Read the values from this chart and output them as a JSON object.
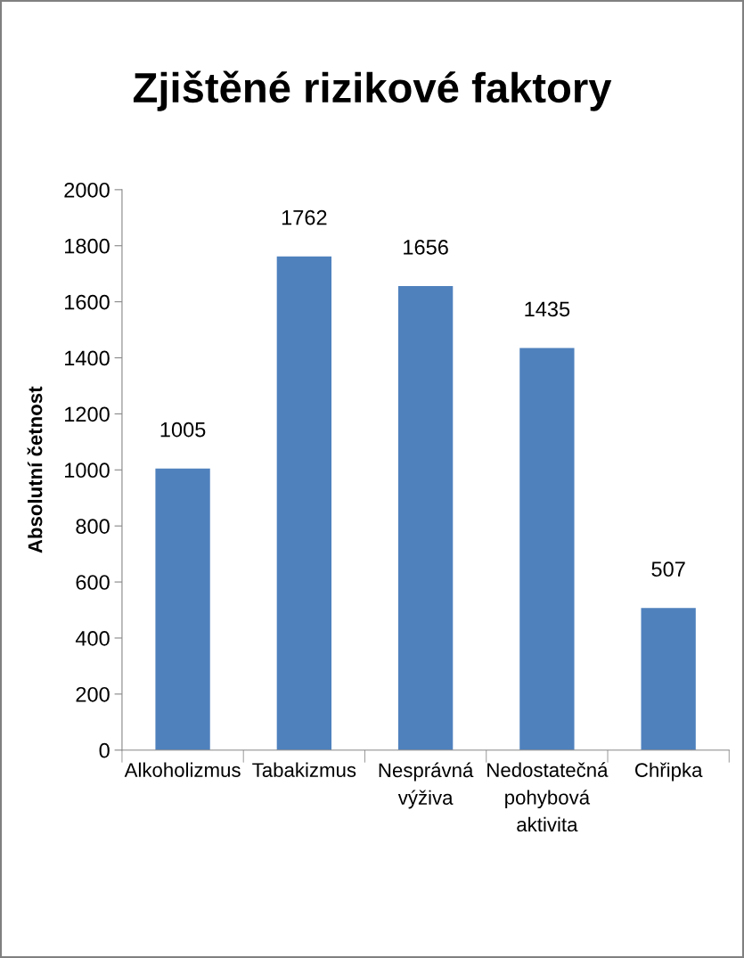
{
  "chart_data": {
    "type": "bar",
    "title": "Zjištěné rizikové faktory",
    "ylabel": "Absolutní četnost",
    "categories": [
      "Alkoholizmus",
      "Tabakizmus",
      "Nesprávná\nvýživa",
      "Nedostatečná\npohybová\naktivita",
      "Chřipka"
    ],
    "values": [
      1005,
      1762,
      1656,
      1435,
      507
    ],
    "color": "#4f81bd",
    "ylim": [
      0,
      2000
    ],
    "yticks": [
      0,
      200,
      400,
      600,
      800,
      1000,
      1200,
      1400,
      1600,
      1800,
      2000
    ],
    "data_labels": true,
    "grid": false,
    "legend": false
  }
}
